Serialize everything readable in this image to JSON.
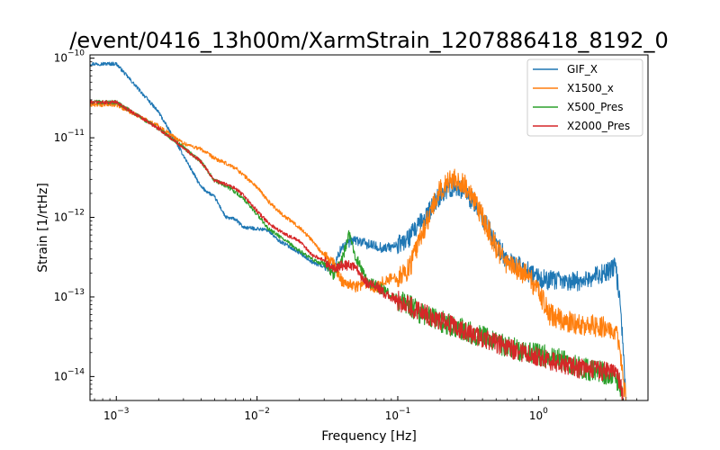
{
  "chart_data": {
    "type": "line",
    "title": "/event/0416_13h00m/XarmStrain_1207886418_8192_0",
    "xlabel": "Frequency [Hz]",
    "ylabel": "Strain [1/rtHz]",
    "xscale": "log",
    "yscale": "log",
    "xlim": [
      0.00065,
      6.0
    ],
    "ylim": [
      5e-15,
      1.1e-10
    ],
    "grid": false,
    "legend_position": "top-right",
    "x_ticks": [
      {
        "value": 0.001,
        "base": "10",
        "exp": "−3"
      },
      {
        "value": 0.01,
        "base": "10",
        "exp": "−2"
      },
      {
        "value": 0.1,
        "base": "10",
        "exp": "−1"
      },
      {
        "value": 1,
        "base": "10",
        "exp": "0"
      }
    ],
    "y_ticks": [
      {
        "value": 1e-14,
        "base": "10",
        "exp": "−14"
      },
      {
        "value": 1e-13,
        "base": "10",
        "exp": "−13"
      },
      {
        "value": 1e-12,
        "base": "10",
        "exp": "−12"
      },
      {
        "value": 1e-11,
        "base": "10",
        "exp": "−11"
      },
      {
        "value": 1e-10,
        "base": "10",
        "exp": "−10"
      }
    ],
    "series": [
      {
        "name": "GIF_X",
        "color": "#1f77b4",
        "noise": 0.09,
        "points": [
          [
            0.00065,
            8.5e-11
          ],
          [
            0.001,
            8.5e-11
          ],
          [
            0.002,
            2.1e-11
          ],
          [
            0.003,
            6e-12
          ],
          [
            0.004,
            2.4e-12
          ],
          [
            0.005,
            1.8e-12
          ],
          [
            0.006,
            1e-12
          ],
          [
            0.007,
            9.5e-13
          ],
          [
            0.008,
            7.5e-13
          ],
          [
            0.01,
            7.2e-13
          ],
          [
            0.012,
            6.9e-13
          ],
          [
            0.014,
            5.2e-13
          ],
          [
            0.017,
            4.3e-13
          ],
          [
            0.02,
            3.6e-13
          ],
          [
            0.025,
            2.7e-13
          ],
          [
            0.03,
            2.4e-13
          ],
          [
            0.035,
            2.3e-13
          ],
          [
            0.04,
            4.3e-13
          ],
          [
            0.05,
            5.2e-13
          ],
          [
            0.06,
            4.6e-13
          ],
          [
            0.08,
            4.1e-13
          ],
          [
            0.1,
            4.4e-13
          ],
          [
            0.12,
            5.5e-13
          ],
          [
            0.15,
            9e-13
          ],
          [
            0.2,
            1.9e-12
          ],
          [
            0.25,
            2.5e-12
          ],
          [
            0.3,
            2.2e-12
          ],
          [
            0.4,
            1e-12
          ],
          [
            0.5,
            4.6e-13
          ],
          [
            0.6,
            2.9e-13
          ],
          [
            0.8,
            2.2e-13
          ],
          [
            1,
            1.7e-13
          ],
          [
            1.5,
            1.55e-13
          ],
          [
            2,
            1.6e-13
          ],
          [
            3,
            2e-13
          ],
          [
            3.5,
            2.4e-13
          ],
          [
            3.8,
            1e-13
          ],
          [
            4,
            2e-14
          ],
          [
            4.2,
            5e-15
          ]
        ]
      },
      {
        "name": "X1500_x",
        "color": "#ff7f0e",
        "noise": 0.1,
        "points": [
          [
            0.00065,
            2.6e-11
          ],
          [
            0.001,
            2.6e-11
          ],
          [
            0.002,
            1.4e-11
          ],
          [
            0.003,
            8.5e-12
          ],
          [
            0.004,
            7.2e-12
          ],
          [
            0.005,
            5.5e-12
          ],
          [
            0.007,
            4.2e-12
          ],
          [
            0.01,
            2.4e-12
          ],
          [
            0.012,
            1.6e-12
          ],
          [
            0.015,
            1.1e-12
          ],
          [
            0.02,
            7.5e-13
          ],
          [
            0.025,
            5e-13
          ],
          [
            0.03,
            3.3e-13
          ],
          [
            0.035,
            2.6e-13
          ],
          [
            0.04,
            1.6e-13
          ],
          [
            0.05,
            1.35e-13
          ],
          [
            0.06,
            1.5e-13
          ],
          [
            0.07,
            1.3e-13
          ],
          [
            0.08,
            1.6e-13
          ],
          [
            0.1,
            1.8e-13
          ],
          [
            0.12,
            2.2e-13
          ],
          [
            0.15,
            6.5e-13
          ],
          [
            0.2,
            2.2e-12
          ],
          [
            0.25,
            3.2e-12
          ],
          [
            0.3,
            2.5e-12
          ],
          [
            0.4,
            1e-12
          ],
          [
            0.5,
            4.2e-13
          ],
          [
            0.6,
            2.6e-13
          ],
          [
            0.8,
            2e-13
          ],
          [
            1,
            1.2e-13
          ],
          [
            1.2,
            6e-14
          ],
          [
            1.5,
            5e-14
          ],
          [
            2,
            4.5e-14
          ],
          [
            3,
            4.2e-14
          ],
          [
            3.5,
            4e-14
          ],
          [
            3.8,
            2e-14
          ],
          [
            4,
            8e-15
          ],
          [
            4.2,
            5e-15
          ]
        ]
      },
      {
        "name": "X500_Pres",
        "color": "#2ca02c",
        "noise": 0.1,
        "points": [
          [
            0.00065,
            2.8e-11
          ],
          [
            0.001,
            2.8e-11
          ],
          [
            0.002,
            1.3e-11
          ],
          [
            0.003,
            7.5e-12
          ],
          [
            0.004,
            5e-12
          ],
          [
            0.005,
            2.9e-12
          ],
          [
            0.006,
            2.5e-12
          ],
          [
            0.007,
            2.1e-12
          ],
          [
            0.008,
            1.7e-12
          ],
          [
            0.01,
            1.1e-12
          ],
          [
            0.012,
            7.2e-13
          ],
          [
            0.015,
            5.5e-13
          ],
          [
            0.02,
            3.8e-13
          ],
          [
            0.025,
            2.9e-13
          ],
          [
            0.03,
            2.6e-13
          ],
          [
            0.035,
            1.9e-13
          ],
          [
            0.04,
            2.9e-13
          ],
          [
            0.045,
            6e-13
          ],
          [
            0.05,
            3.3e-13
          ],
          [
            0.06,
            1.6e-13
          ],
          [
            0.08,
            1.2e-13
          ],
          [
            0.1,
            9e-14
          ],
          [
            0.12,
            8e-14
          ],
          [
            0.15,
            6e-14
          ],
          [
            0.2,
            5e-14
          ],
          [
            0.3,
            3.8e-14
          ],
          [
            0.5,
            2.7e-14
          ],
          [
            0.7,
            2.2e-14
          ],
          [
            1,
            1.9e-14
          ],
          [
            1.5,
            1.6e-14
          ],
          [
            2,
            1.3e-14
          ],
          [
            3,
            1.1e-14
          ],
          [
            3.5,
            1e-14
          ],
          [
            3.8,
            8e-15
          ],
          [
            4,
            5e-15
          ]
        ]
      },
      {
        "name": "X2000_Pres",
        "color": "#d62728",
        "noise": 0.09,
        "points": [
          [
            0.00065,
            2.8e-11
          ],
          [
            0.001,
            2.8e-11
          ],
          [
            0.002,
            1.3e-11
          ],
          [
            0.003,
            7.5e-12
          ],
          [
            0.004,
            5e-12
          ],
          [
            0.005,
            2.9e-12
          ],
          [
            0.006,
            2.6e-12
          ],
          [
            0.007,
            2.3e-12
          ],
          [
            0.008,
            1.9e-12
          ],
          [
            0.01,
            1.2e-12
          ],
          [
            0.012,
            8.5e-13
          ],
          [
            0.015,
            6.5e-13
          ],
          [
            0.02,
            5e-13
          ],
          [
            0.025,
            3.3e-13
          ],
          [
            0.03,
            2.9e-13
          ],
          [
            0.035,
            2.2e-13
          ],
          [
            0.04,
            2.5e-13
          ],
          [
            0.045,
            2.5e-13
          ],
          [
            0.05,
            2.4e-13
          ],
          [
            0.06,
            1.5e-13
          ],
          [
            0.07,
            1.4e-13
          ],
          [
            0.08,
            1.1e-13
          ],
          [
            0.1,
            9e-14
          ],
          [
            0.12,
            7.8e-14
          ],
          [
            0.15,
            6.5e-14
          ],
          [
            0.2,
            5e-14
          ],
          [
            0.3,
            3.6e-14
          ],
          [
            0.5,
            2.6e-14
          ],
          [
            0.7,
            2.1e-14
          ],
          [
            1,
            1.75e-14
          ],
          [
            1.5,
            1.45e-14
          ],
          [
            2,
            1.25e-14
          ],
          [
            3,
            1.15e-14
          ],
          [
            3.5,
            1.1e-14
          ],
          [
            3.8,
            8e-15
          ],
          [
            4,
            5e-15
          ]
        ]
      }
    ]
  }
}
